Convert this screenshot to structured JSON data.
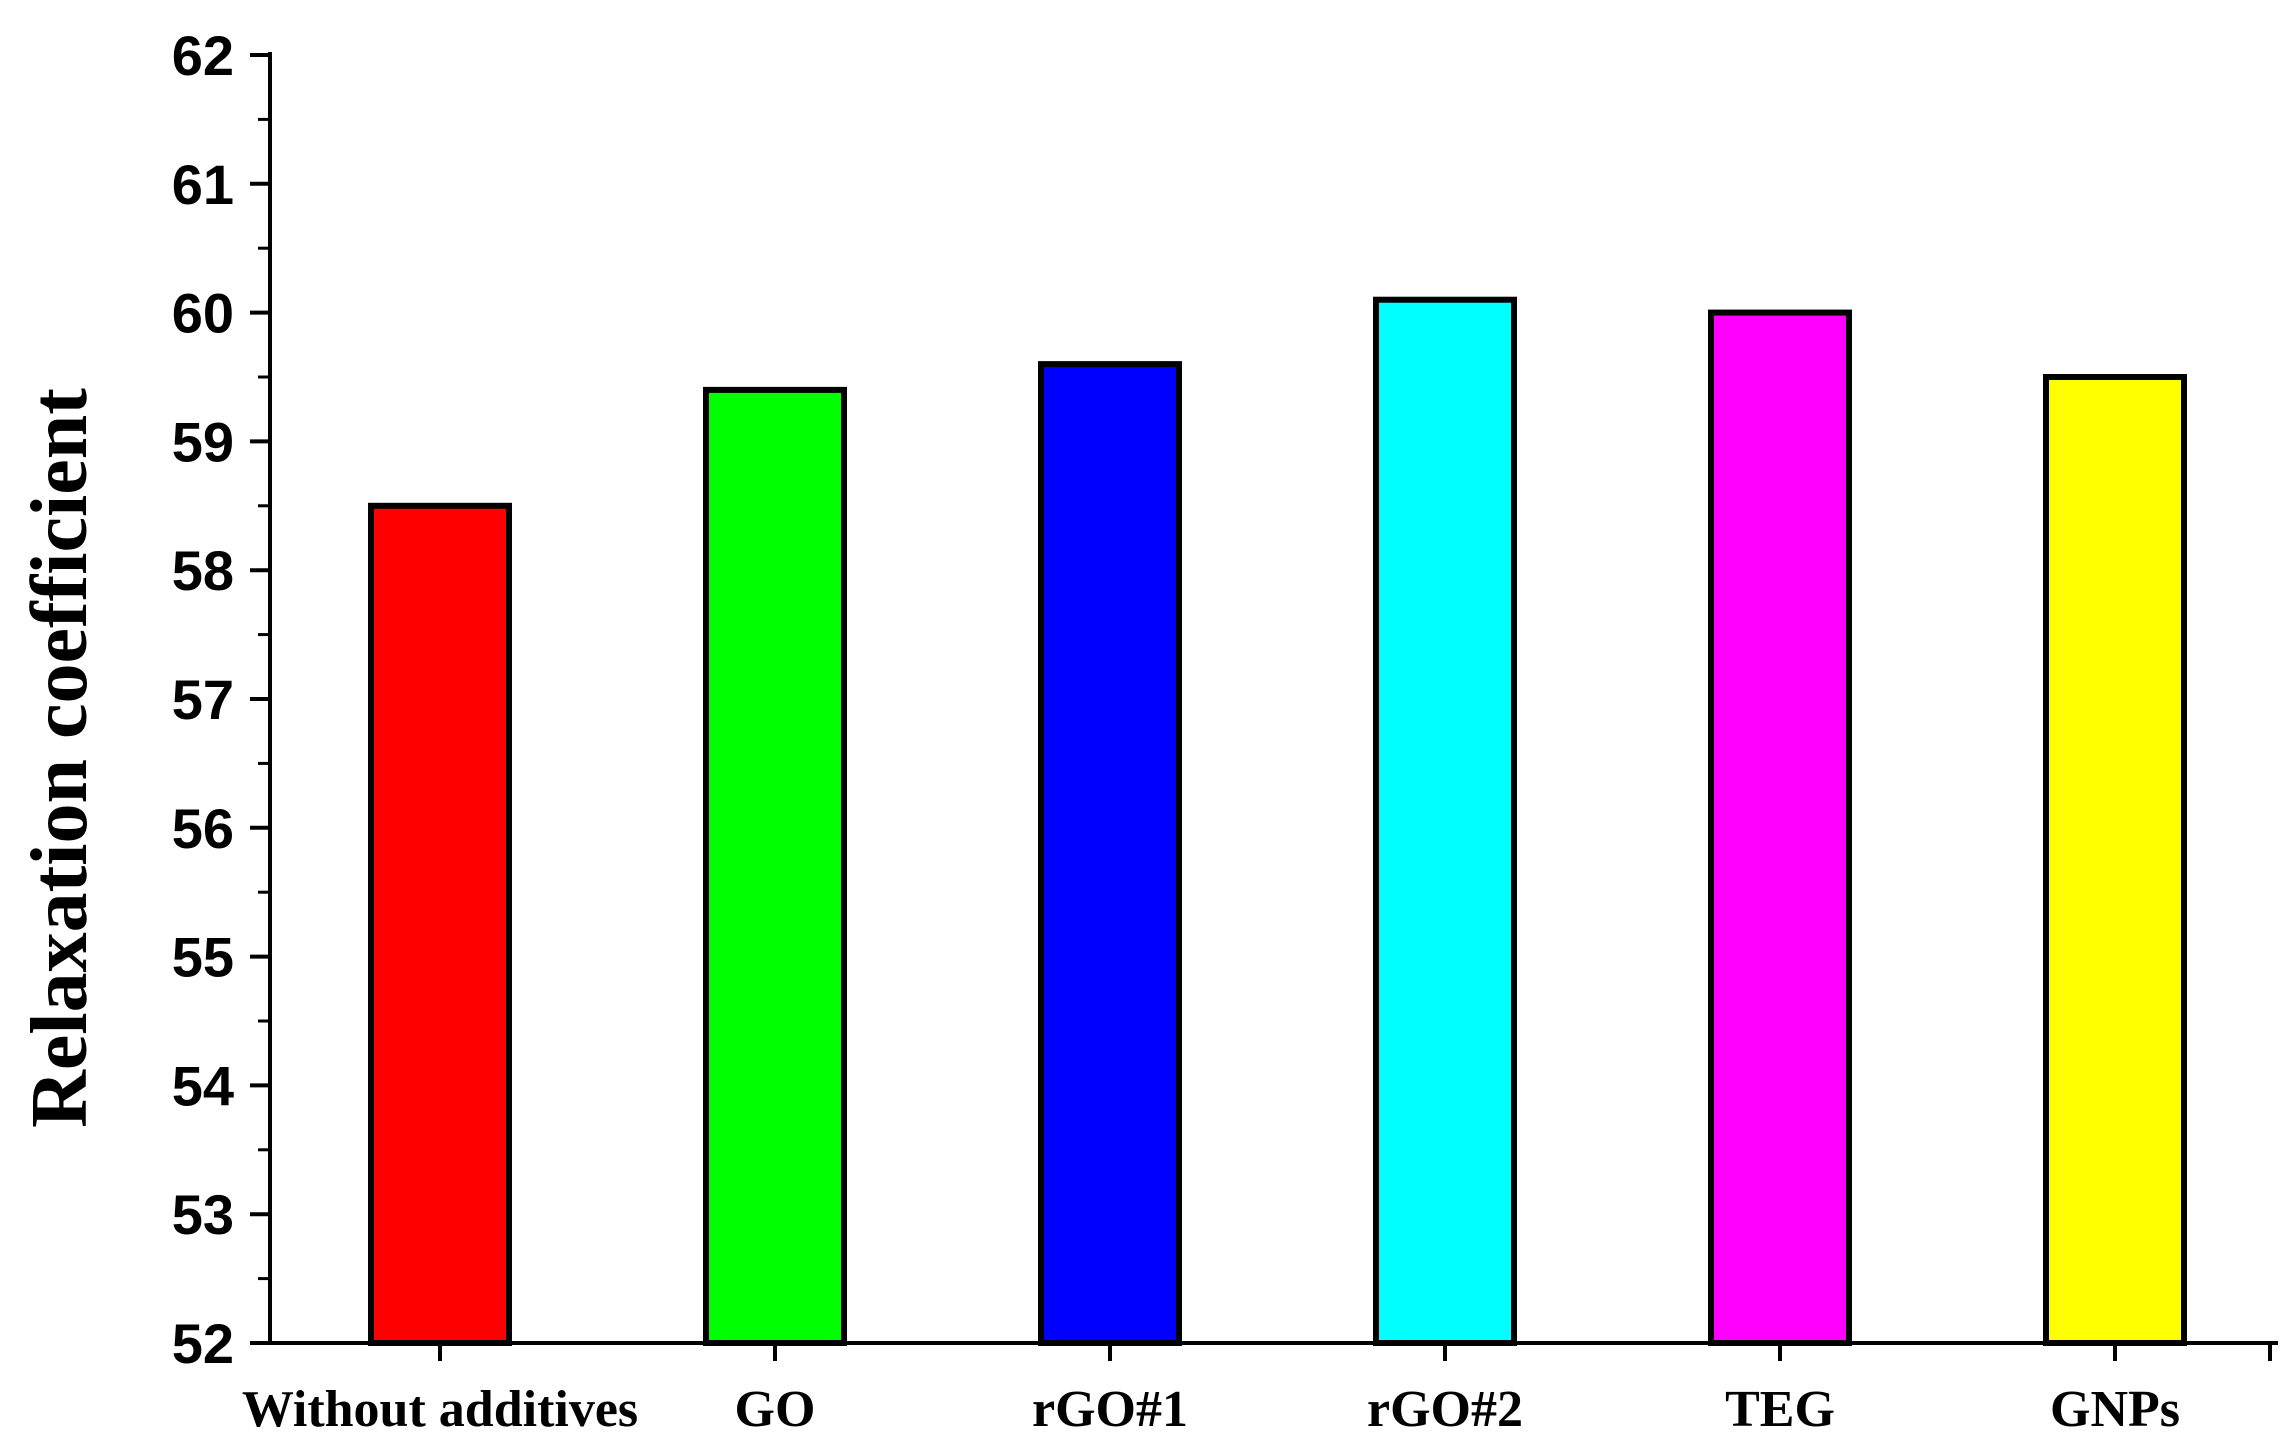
{
  "chart_data": {
    "type": "bar",
    "title": "",
    "xlabel": "",
    "ylabel": "Relaxation coefficient",
    "ylim": [
      52,
      62
    ],
    "yticks": [
      "52",
      "53",
      "54",
      "55",
      "56",
      "57",
      "58",
      "59",
      "60",
      "61",
      "62"
    ],
    "categories": [
      "Without additives",
      "GO",
      "rGO#1",
      "rGO#2",
      "TEG",
      "GNPs"
    ],
    "values": [
      58.5,
      59.4,
      59.6,
      60.1,
      60.0,
      59.5
    ],
    "colors": [
      "#ff0000",
      "#00ff00",
      "#0000ff",
      "#00ffff",
      "#ff00ff",
      "#ffff00"
    ],
    "grid": false,
    "legend": "none"
  }
}
